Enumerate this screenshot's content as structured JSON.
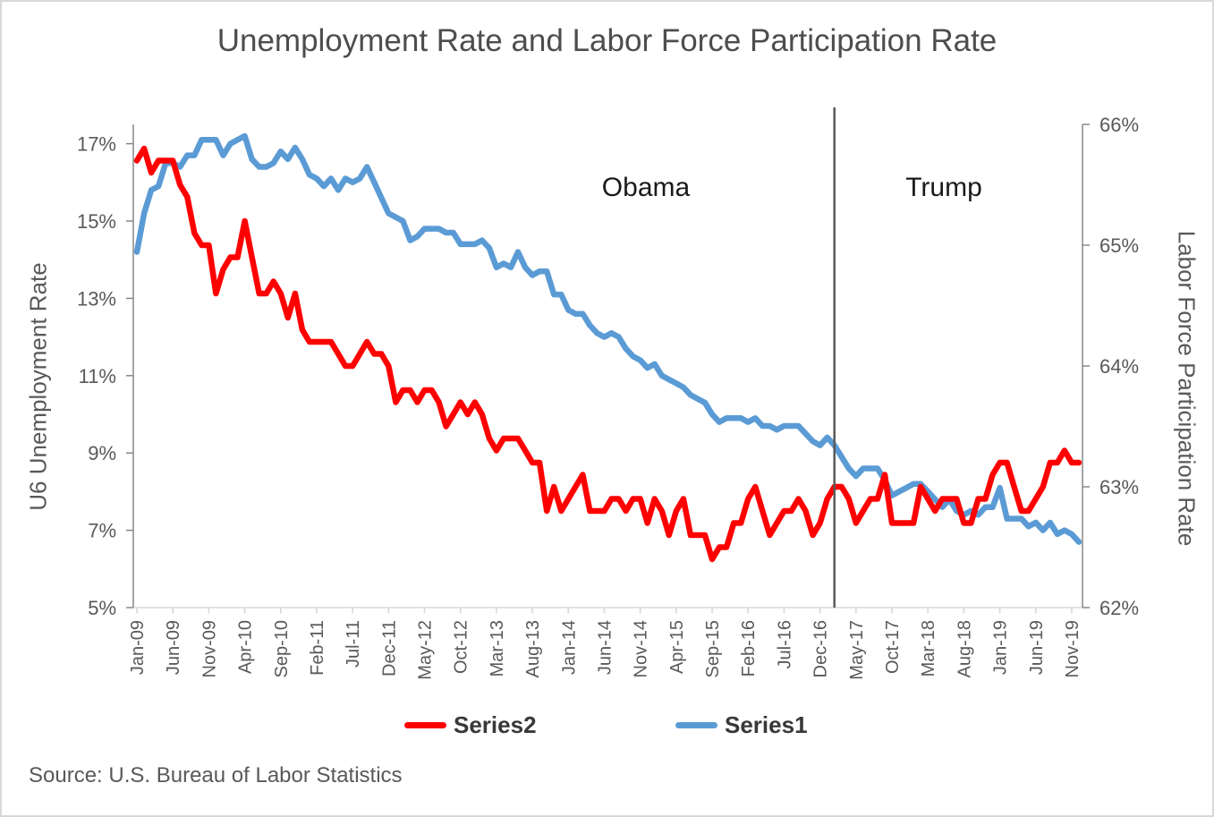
{
  "chart_data": {
    "type": "line",
    "title": "Unemployment Rate and Labor Force Participation Rate",
    "x_axis": {
      "tick_labels": [
        "Jan-09",
        "Jun-09",
        "Nov-09",
        "Apr-10",
        "Sep-10",
        "Feb-11",
        "Jul-11",
        "Dec-11",
        "May-12",
        "Oct-12",
        "Mar-13",
        "Aug-13",
        "Jan-14",
        "Jun-14",
        "Nov-14",
        "Apr-15",
        "Sep-15",
        "Feb-16",
        "Jul-16",
        "Dec-16",
        "May-17",
        "Oct-17",
        "Mar-18",
        "Aug-18",
        "Jan-19",
        "Jun-19",
        "Nov-19"
      ],
      "tick_every_n_months": 5,
      "n_points": 132
    },
    "y_left": {
      "title": "U6 Unemployment Rate",
      "tick_labels": [
        "5%",
        "7%",
        "9%",
        "11%",
        "13%",
        "15%",
        "17%"
      ],
      "ylim": [
        5,
        17.5
      ]
    },
    "y_right": {
      "title": "Labor Force Participation Rate",
      "tick_labels": [
        "62%",
        "63%",
        "64%",
        "65%",
        "66%"
      ],
      "ylim": [
        62,
        66
      ]
    },
    "series": [
      {
        "name": "Series1",
        "color": "#5B9BD5",
        "axis": "left",
        "description": "U6 unemployment rate (%), monthly Jan-2009 to Dec-2019",
        "values": [
          14.2,
          15.2,
          15.8,
          15.9,
          16.5,
          16.5,
          16.4,
          16.7,
          16.7,
          17.1,
          17.1,
          17.1,
          16.7,
          17.0,
          17.1,
          17.2,
          16.6,
          16.4,
          16.4,
          16.5,
          16.8,
          16.6,
          16.9,
          16.6,
          16.2,
          16.1,
          15.9,
          16.1,
          15.8,
          16.1,
          16.0,
          16.1,
          16.4,
          16.0,
          15.6,
          15.2,
          15.1,
          15.0,
          14.5,
          14.6,
          14.8,
          14.8,
          14.8,
          14.7,
          14.7,
          14.4,
          14.4,
          14.4,
          14.5,
          14.3,
          13.8,
          13.9,
          13.8,
          14.2,
          13.8,
          13.6,
          13.7,
          13.7,
          13.1,
          13.1,
          12.7,
          12.6,
          12.6,
          12.3,
          12.1,
          12.0,
          12.1,
          12.0,
          11.7,
          11.5,
          11.4,
          11.2,
          11.3,
          11.0,
          10.9,
          10.8,
          10.7,
          10.5,
          10.4,
          10.3,
          10.0,
          9.8,
          9.9,
          9.9,
          9.9,
          9.8,
          9.9,
          9.7,
          9.7,
          9.6,
          9.7,
          9.7,
          9.7,
          9.5,
          9.3,
          9.2,
          9.4,
          9.2,
          8.9,
          8.6,
          8.4,
          8.6,
          8.6,
          8.6,
          8.3,
          7.9,
          8.0,
          8.1,
          8.2,
          8.2,
          8.0,
          7.8,
          7.6,
          7.8,
          7.5,
          7.4,
          7.5,
          7.4,
          7.6,
          7.6,
          8.1,
          7.3,
          7.3,
          7.3,
          7.1,
          7.2,
          7.0,
          7.2,
          6.9,
          7.0,
          6.9,
          6.7
        ]
      },
      {
        "name": "Series2",
        "color": "#FF0000",
        "axis": "right",
        "description": "Labor force participation rate (%), monthly Jan-2009 to Dec-2019",
        "values": [
          65.7,
          65.8,
          65.6,
          65.7,
          65.7,
          65.7,
          65.5,
          65.4,
          65.1,
          65.0,
          65.0,
          64.6,
          64.8,
          64.9,
          64.9,
          65.2,
          64.9,
          64.6,
          64.6,
          64.7,
          64.6,
          64.4,
          64.6,
          64.3,
          64.2,
          64.2,
          64.2,
          64.2,
          64.1,
          64.0,
          64.0,
          64.1,
          64.2,
          64.1,
          64.1,
          64.0,
          63.7,
          63.8,
          63.8,
          63.7,
          63.8,
          63.8,
          63.7,
          63.5,
          63.6,
          63.7,
          63.6,
          63.7,
          63.6,
          63.4,
          63.3,
          63.4,
          63.4,
          63.4,
          63.3,
          63.2,
          63.2,
          62.8,
          63.0,
          62.8,
          62.9,
          63.0,
          63.1,
          62.8,
          62.8,
          62.8,
          62.9,
          62.9,
          62.8,
          62.9,
          62.9,
          62.7,
          62.9,
          62.8,
          62.6,
          62.8,
          62.9,
          62.6,
          62.6,
          62.6,
          62.4,
          62.5,
          62.5,
          62.7,
          62.7,
          62.9,
          63.0,
          62.8,
          62.6,
          62.7,
          62.8,
          62.8,
          62.9,
          62.8,
          62.6,
          62.7,
          62.9,
          63.0,
          63.0,
          62.9,
          62.7,
          62.8,
          62.9,
          62.9,
          63.1,
          62.7,
          62.7,
          62.7,
          62.7,
          63.0,
          62.9,
          62.8,
          62.9,
          62.9,
          62.9,
          62.7,
          62.7,
          62.9,
          62.9,
          63.1,
          63.2,
          63.2,
          63.0,
          62.8,
          62.8,
          62.9,
          63.0,
          63.2,
          63.2,
          63.3,
          63.2,
          63.2
        ]
      }
    ],
    "legend": [
      {
        "label": "Series2",
        "color": "#FF0000"
      },
      {
        "label": "Series1",
        "color": "#5B9BD5"
      }
    ],
    "legend_position": "bottom",
    "grid": false,
    "annotations": {
      "obama": "Obama",
      "trump": "Trump",
      "divider_month_index": 97,
      "divider_color": "#595959"
    },
    "source": "Source: U.S. Bureau of Labor Statistics"
  }
}
